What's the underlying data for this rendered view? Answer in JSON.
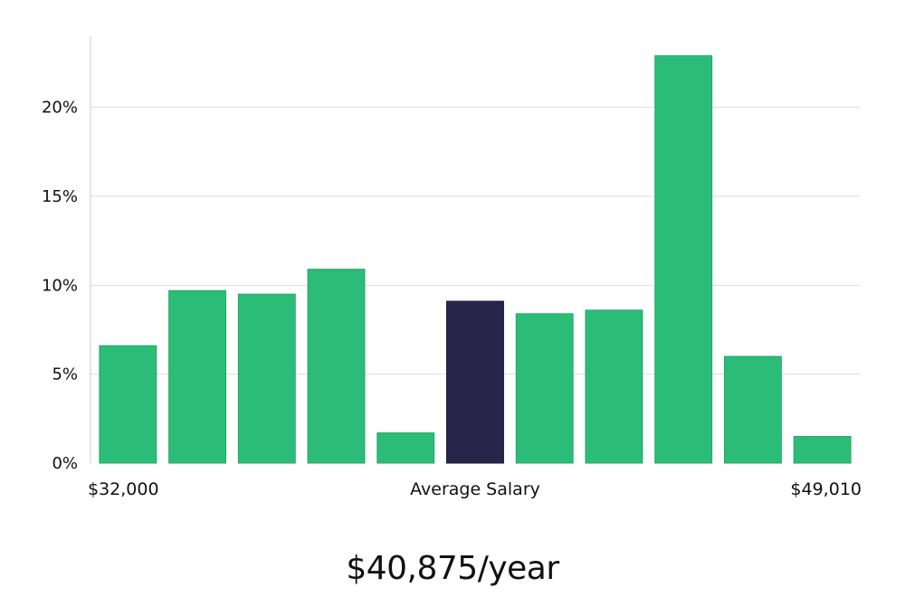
{
  "chart_data": {
    "type": "bar",
    "categories": [
      "1",
      "2",
      "3",
      "4",
      "5",
      "6",
      "7",
      "8",
      "9",
      "10",
      "11"
    ],
    "values": [
      6.6,
      9.7,
      9.5,
      10.9,
      1.7,
      9.1,
      8.4,
      8.6,
      22.9,
      6.0,
      1.5
    ],
    "highlight_index": 5,
    "ylim": [
      0,
      24
    ],
    "yticks": [
      0,
      5,
      10,
      15,
      20
    ],
    "ytick_labels": [
      "0%",
      "5%",
      "10%",
      "15%",
      "20%"
    ],
    "xlabel_left": "$32,000",
    "xlabel_center": "Average Salary",
    "xlabel_right": "$49,010",
    "grid": true,
    "colors": {
      "bar": "#2bbd77",
      "highlight": "#28244a",
      "grid": "#dddddd",
      "axis": "#cccccc"
    }
  },
  "summary": "$40,875/year"
}
